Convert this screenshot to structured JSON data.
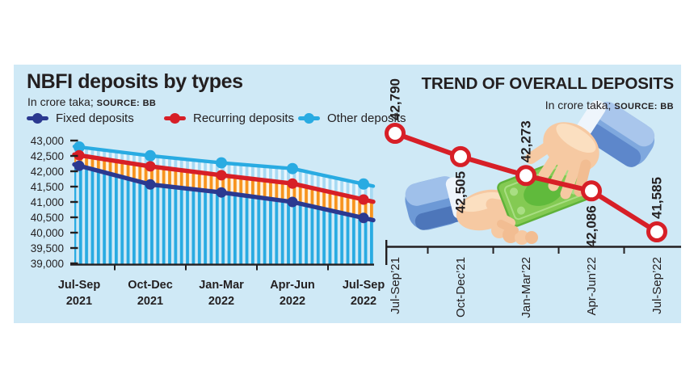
{
  "panel": {
    "background": "#cfe9f6",
    "ink": "#231f20"
  },
  "left_chart": {
    "title": "NBFI deposits by types",
    "unit": "In crore taka;",
    "source": "SOURCE: BB",
    "legend": [
      {
        "label": "Fixed deposits",
        "color": "#2b3990"
      },
      {
        "label": "Recurring deposits",
        "color": "#d71f27"
      },
      {
        "label": "Other deposits",
        "color": "#29abe2"
      }
    ]
  },
  "right_chart": {
    "title": "TREND OF OVERALL DEPOSITS",
    "unit": "In crore taka;",
    "source": "SOURCE: BB"
  },
  "chart_data": [
    {
      "type": "area",
      "title": "NBFI deposits by types",
      "subtitle": "In crore taka; SOURCE: BB",
      "categories": [
        [
          "Jul-Sep",
          "2021"
        ],
        [
          "Oct-Dec",
          "2021"
        ],
        [
          "Jan-Mar",
          "2022"
        ],
        [
          "Apr-Jun",
          "2022"
        ],
        [
          "Jul-Sep",
          "2022"
        ]
      ],
      "series": [
        {
          "name": "Fixed deposits",
          "color": "#2b3990",
          "stripe": "#29abe2",
          "stripe_bg": "none",
          "values": [
            42180,
            41570,
            41310,
            41000,
            40480
          ]
        },
        {
          "name": "Recurring deposits",
          "color": "#d71f27",
          "stripe": "#f7941e",
          "stripe_bg": "#fdf3e3",
          "values": [
            42520,
            42160,
            41870,
            41600,
            41080
          ]
        },
        {
          "name": "Other deposits",
          "color": "#29abe2",
          "stripe": "#a7daf3",
          "stripe_bg": "#e9f6fd",
          "values": [
            42790,
            42505,
            42273,
            42086,
            41585
          ]
        }
      ],
      "ylim": [
        39000,
        43000
      ],
      "ytick_step": 500,
      "grid": false,
      "legend_position": "top"
    },
    {
      "type": "line",
      "title": "TREND OF OVERALL DEPOSITS",
      "subtitle": "In crore taka; SOURCE: BB",
      "categories": [
        "Jul-Sep’21",
        "Oct-Dec’21",
        "Jan-Mar’22",
        "Apr-Jun’22",
        "Jul-Sep’22"
      ],
      "values": [
        42790,
        42505,
        42273,
        42086,
        41585
      ],
      "point_labels": [
        "42,790",
        "42,505",
        "42,273",
        "42,086",
        "41,585"
      ],
      "label_side": [
        "above",
        "below",
        "above",
        "below",
        "above"
      ],
      "color": "#d71f27",
      "marker": "open-circle",
      "grid": false
    }
  ]
}
